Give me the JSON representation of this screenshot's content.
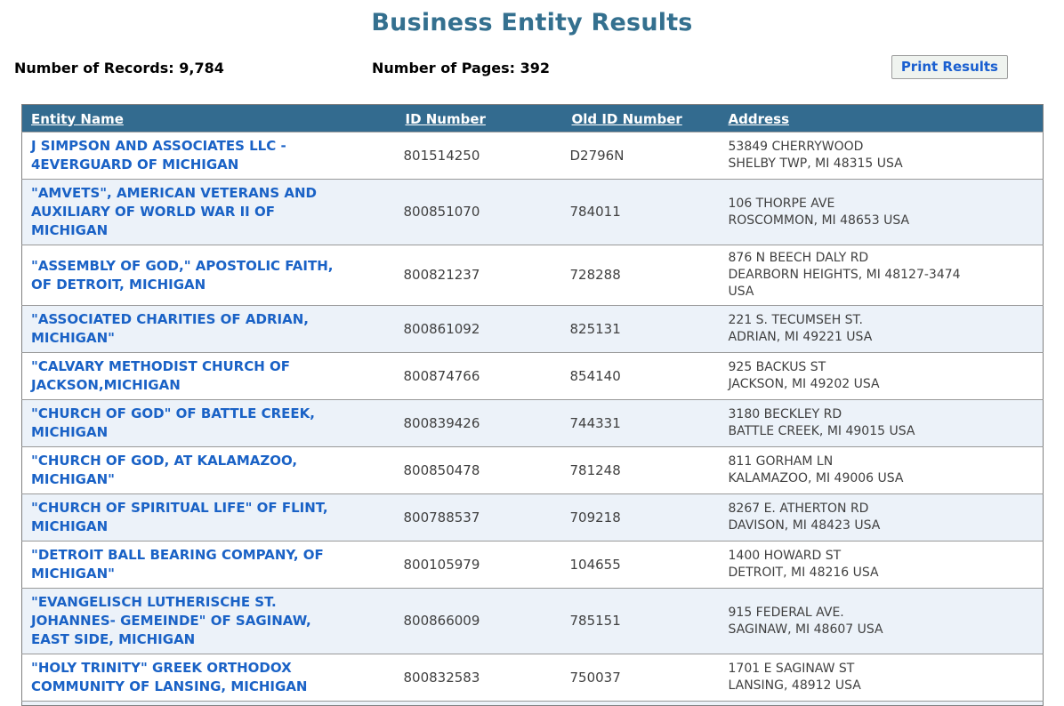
{
  "colors": {
    "title": "#34708f",
    "header-bg": "#336b8f",
    "header-text": "#ffffff",
    "link": "#1a62c6",
    "row-alt-bg": "#ecf2f9",
    "row-border": "#999999",
    "table-outer-border": "#808080",
    "cell-text": "#404040",
    "button-bg": "#eff3ef",
    "button-border": "#9d9d9d",
    "button-text": "#1a5fd0"
  },
  "page": {
    "title": "Business Entity Results"
  },
  "meta": {
    "records_label": "Number of Records:",
    "records_value": "9,784",
    "pages_label": "Number of Pages:",
    "pages_value": "392"
  },
  "toolbar": {
    "print_button_label": "Print Results"
  },
  "table": {
    "headers": [
      "Entity Name",
      "ID Number",
      "Old ID Number",
      "Address"
    ],
    "rows": [
      {
        "entity_name": "J SIMPSON AND ASSOCIATES LLC - 4EVERGUARD OF MICHIGAN",
        "entity_name_lines": [
          "J SIMPSON AND ASSOCIATES LLC -",
          "4EVERGUARD OF MICHIGAN"
        ],
        "id_number": "801514250",
        "old_id_number": "D2796N",
        "address_lines": [
          "53849 CHERRYWOOD",
          "SHELBY TWP, MI 48315 USA"
        ]
      },
      {
        "entity_name": "\"AMVETS\", AMERICAN VETERANS AND AUXILIARY OF WORLD WAR II OF MICHIGAN",
        "entity_name_lines": [
          "\"AMVETS\", AMERICAN VETERANS AND",
          "AUXILIARY OF WORLD WAR II OF",
          "MICHIGAN"
        ],
        "id_number": "800851070",
        "old_id_number": "784011",
        "address_lines": [
          "106 THORPE AVE",
          "ROSCOMMON, MI 48653 USA"
        ]
      },
      {
        "entity_name": "\"ASSEMBLY OF GOD,\" APOSTOLIC FAITH, OF DETROIT, MICHIGAN",
        "entity_name_lines": [
          "\"ASSEMBLY OF GOD,\" APOSTOLIC FAITH,",
          "OF DETROIT, MICHIGAN"
        ],
        "id_number": "800821237",
        "old_id_number": "728288",
        "address_lines": [
          "876 N BEECH DALY RD",
          "DEARBORN HEIGHTS, MI 48127-3474",
          "USA"
        ]
      },
      {
        "entity_name": "\"ASSOCIATED CHARITIES OF ADRIAN, MICHIGAN\"",
        "entity_name_lines": [
          "\"ASSOCIATED CHARITIES OF ADRIAN,",
          "MICHIGAN\""
        ],
        "id_number": "800861092",
        "old_id_number": "825131",
        "address_lines": [
          "221 S. TECUMSEH ST.",
          "ADRIAN, MI 49221 USA"
        ]
      },
      {
        "entity_name": "\"CALVARY METHODIST CHURCH OF JACKSON,MICHIGAN",
        "entity_name_lines": [
          "\"CALVARY METHODIST CHURCH OF",
          "JACKSON,MICHIGAN"
        ],
        "id_number": "800874766",
        "old_id_number": "854140",
        "address_lines": [
          "925 BACKUS ST",
          "JACKSON, MI 49202 USA"
        ]
      },
      {
        "entity_name": "\"CHURCH OF GOD\" OF BATTLE CREEK, MICHIGAN",
        "entity_name_lines": [
          "\"CHURCH OF GOD\" OF BATTLE CREEK,",
          "MICHIGAN"
        ],
        "id_number": "800839426",
        "old_id_number": "744331",
        "address_lines": [
          "3180 BECKLEY RD",
          "BATTLE CREEK, MI 49015 USA"
        ]
      },
      {
        "entity_name": "\"CHURCH OF GOD, AT KALAMAZOO, MICHIGAN\"",
        "entity_name_lines": [
          "\"CHURCH OF GOD, AT KALAMAZOO,",
          "MICHIGAN\""
        ],
        "id_number": "800850478",
        "old_id_number": "781248",
        "address_lines": [
          "811 GORHAM LN",
          "KALAMAZOO, MI 49006 USA"
        ]
      },
      {
        "entity_name": "\"CHURCH OF SPIRITUAL LIFE\" OF FLINT, MICHIGAN",
        "entity_name_lines": [
          "\"CHURCH OF SPIRITUAL LIFE\" OF FLINT,",
          "MICHIGAN"
        ],
        "id_number": "800788537",
        "old_id_number": "709218",
        "address_lines": [
          "8267 E. ATHERTON RD",
          "DAVISON, MI 48423 USA"
        ]
      },
      {
        "entity_name": "\"DETROIT BALL BEARING COMPANY, OF MICHIGAN\"",
        "entity_name_lines": [
          "\"DETROIT BALL BEARING COMPANY, OF",
          "MICHIGAN\""
        ],
        "id_number": "800105979",
        "old_id_number": "104655",
        "address_lines": [
          "1400 HOWARD ST",
          "DETROIT, MI 48216 USA"
        ]
      },
      {
        "entity_name": "\"EVANGELISCH LUTHERISCHE ST. JOHANNES- GEMEINDE\" OF SAGINAW, EAST SIDE, MICHIGAN",
        "entity_name_lines": [
          "\"EVANGELISCH LUTHERISCHE ST.",
          "JOHANNES- GEMEINDE\" OF SAGINAW,",
          "EAST SIDE, MICHIGAN"
        ],
        "id_number": "800866009",
        "old_id_number": "785151",
        "address_lines": [
          "915 FEDERAL AVE.",
          "SAGINAW, MI 48607 USA"
        ]
      },
      {
        "entity_name": "\"HOLY TRINITY\" GREEK ORTHODOX COMMUNITY OF LANSING, MICHIGAN",
        "entity_name_lines": [
          "\"HOLY TRINITY\" GREEK ORTHODOX",
          "COMMUNITY OF LANSING, MICHIGAN"
        ],
        "id_number": "800832583",
        "old_id_number": "750037",
        "address_lines": [
          "1701 E SAGINAW ST",
          "LANSING, 48912 USA"
        ]
      }
    ]
  }
}
